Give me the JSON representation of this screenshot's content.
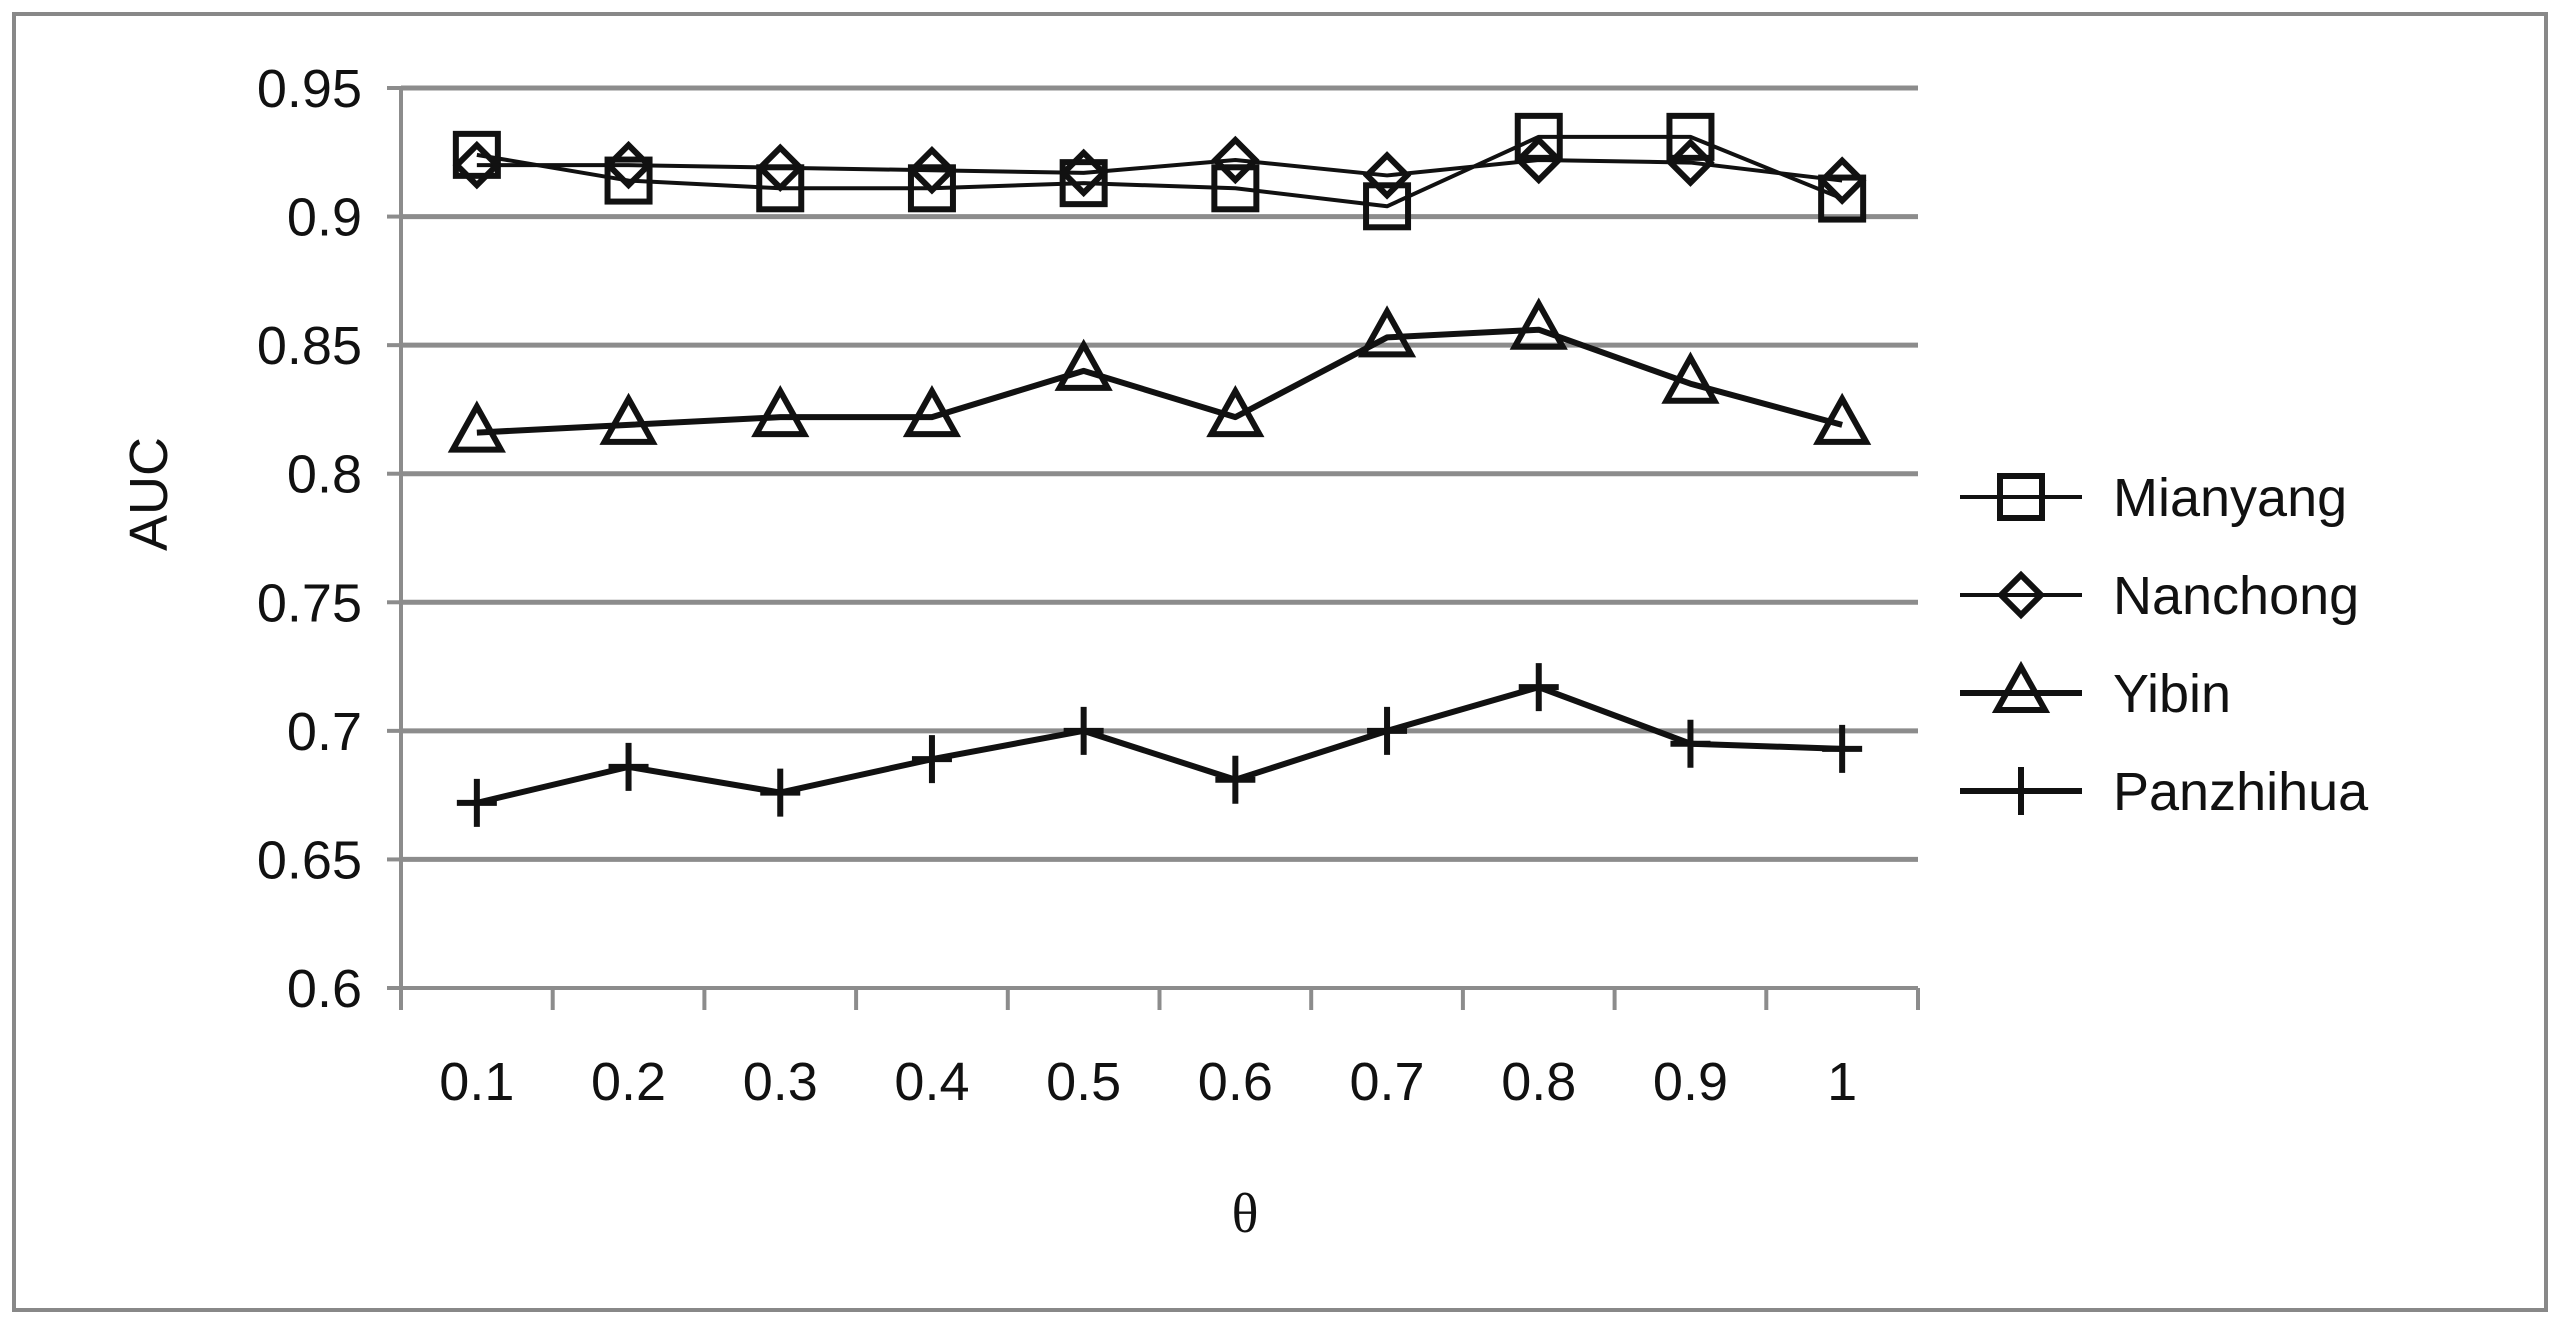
{
  "chart_data": {
    "type": "line",
    "title": "",
    "xlabel": "θ",
    "ylabel": "AUC",
    "categories": [
      "0.1",
      "0.2",
      "0.3",
      "0.4",
      "0.5",
      "0.6",
      "0.7",
      "0.8",
      "0.9",
      "1"
    ],
    "ylim": [
      0.6,
      0.95
    ],
    "yticks": [
      "0.6",
      "0.65",
      "0.7",
      "0.75",
      "0.8",
      "0.85",
      "0.9",
      "0.95"
    ],
    "grid": "horizontal",
    "legend_position": "right",
    "series": [
      {
        "name": "Mianyang",
        "marker": "square",
        "color": "#111111",
        "values": [
          0.924,
          0.914,
          0.911,
          0.911,
          0.913,
          0.911,
          0.904,
          0.931,
          0.931,
          0.907
        ]
      },
      {
        "name": "Nanchong",
        "marker": "diamond",
        "color": "#111111",
        "values": [
          0.92,
          0.92,
          0.919,
          0.918,
          0.917,
          0.922,
          0.916,
          0.922,
          0.921,
          0.914
        ]
      },
      {
        "name": "Yibin",
        "marker": "triangle",
        "color": "#111111",
        "values": [
          0.816,
          0.819,
          0.822,
          0.822,
          0.84,
          0.822,
          0.853,
          0.856,
          0.835,
          0.819
        ]
      },
      {
        "name": "Panzhihua",
        "marker": "plus",
        "color": "#111111",
        "values": [
          0.672,
          0.686,
          0.676,
          0.689,
          0.7,
          0.681,
          0.7,
          0.717,
          0.695,
          0.693
        ]
      }
    ]
  }
}
